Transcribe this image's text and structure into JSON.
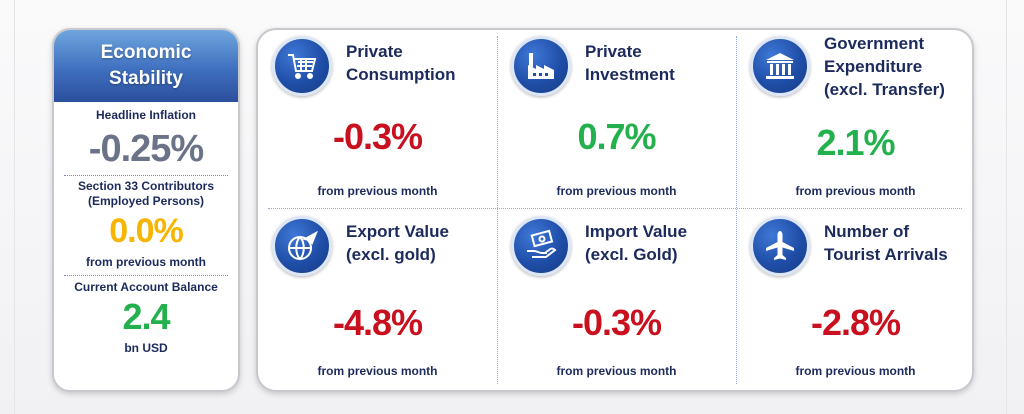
{
  "colors": {
    "negative": "#c8101e",
    "positive": "#22b14c",
    "neutral": "#6a7387",
    "zero": "#f7b500",
    "label": "#1c2a5c",
    "header_blue": "#3f6fbf"
  },
  "economic_stability": {
    "title_line1": "Economic",
    "title_line2": "Stability",
    "inflation": {
      "label": "Headline Inflation",
      "value": "-0.25%"
    },
    "section33": {
      "label_line1": "Section 33 Contributors",
      "label_line2": "(Employed Persons)",
      "value": "0.0%",
      "note": "from previous month"
    },
    "current_account": {
      "label": "Current Account Balance",
      "value": "2.4",
      "unit": "bn USD"
    }
  },
  "indicators": [
    {
      "title_lines": [
        "Private",
        "Consumption",
        ""
      ],
      "value": "-0.3%",
      "note": "from previous month",
      "icon": "shopping-cart-icon",
      "sign": "negative"
    },
    {
      "title_lines": [
        "Private",
        "Investment",
        ""
      ],
      "value": "0.7%",
      "note": "from previous month",
      "icon": "factory-icon",
      "sign": "positive"
    },
    {
      "title_lines": [
        "Government",
        "Expenditure",
        "(excl. Transfer)"
      ],
      "value": "2.1%",
      "note": "from previous month",
      "icon": "government-building-icon",
      "sign": "positive"
    },
    {
      "title_lines": [
        "Export Value",
        "(excl. gold)",
        ""
      ],
      "value": "-4.8%",
      "note": "from previous month",
      "icon": "globe-plane-icon",
      "sign": "negative"
    },
    {
      "title_lines": [
        "Import Value",
        "(excl. Gold)",
        ""
      ],
      "value": "-0.3%",
      "note": "from previous month",
      "icon": "money-hand-icon",
      "sign": "negative"
    },
    {
      "title_lines": [
        "Number of",
        "Tourist Arrivals",
        ""
      ],
      "value": "-2.8%",
      "note": "from previous month",
      "icon": "airplane-icon",
      "sign": "negative"
    }
  ]
}
